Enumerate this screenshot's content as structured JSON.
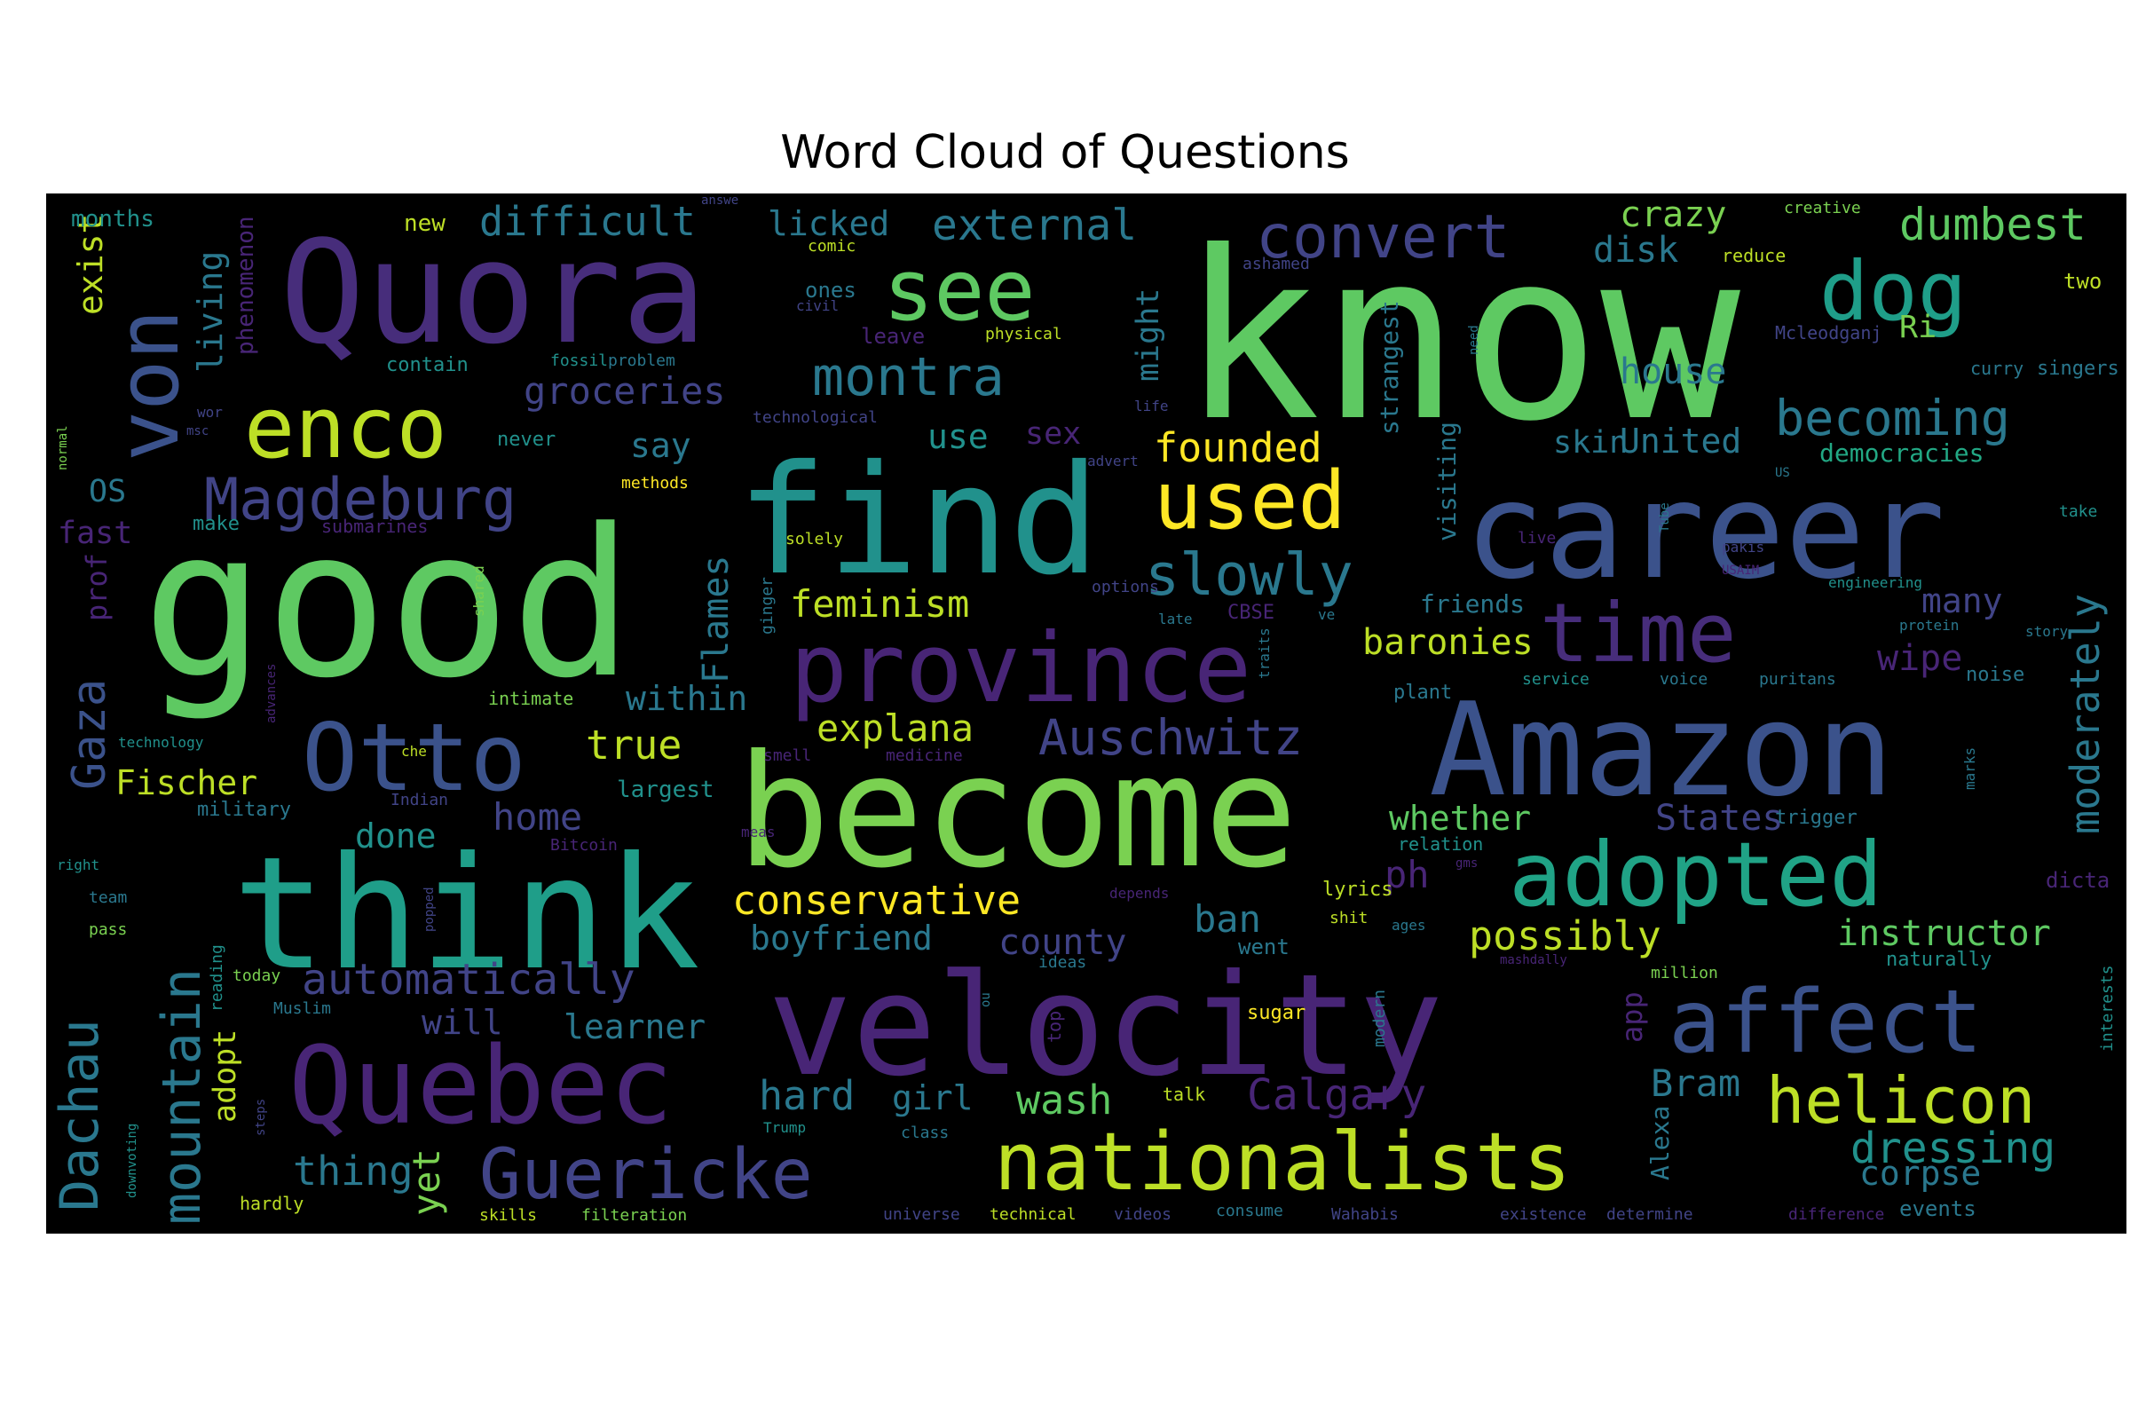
{
  "chart_data": {
    "type": "wordcloud",
    "title": "Word Cloud of Questions",
    "background": "#000000",
    "colormap": "viridis",
    "words": [
      {
        "text": "know",
        "size": 262,
        "color": "#5ec962"
      },
      {
        "text": "good",
        "size": 230,
        "color": "#5ec962"
      },
      {
        "text": "think",
        "size": 175,
        "color": "#1f9e89"
      },
      {
        "text": "become",
        "size": 175,
        "color": "#7ad151"
      },
      {
        "text": "find",
        "size": 170,
        "color": "#21918c"
      },
      {
        "text": "Quora",
        "size": 160,
        "color": "#472d7b"
      },
      {
        "text": "velocity",
        "size": 158,
        "color": "#482576"
      },
      {
        "text": "career",
        "size": 150,
        "color": "#3b528b"
      },
      {
        "text": "Amazon",
        "size": 145,
        "color": "#3b528b"
      },
      {
        "text": "Quebec",
        "size": 120,
        "color": "#482576"
      },
      {
        "text": "province",
        "size": 108,
        "color": "#482576"
      },
      {
        "text": "Otto",
        "size": 105,
        "color": "#3b528b"
      },
      {
        "text": "adopted",
        "size": 100,
        "color": "#20a386"
      },
      {
        "text": "affect",
        "size": 98,
        "color": "#3b528b"
      },
      {
        "text": "see",
        "size": 95,
        "color": "#5ec962"
      },
      {
        "text": "enco",
        "size": 95,
        "color": "#bddf26"
      },
      {
        "text": "dog",
        "size": 92,
        "color": "#1f9e89"
      },
      {
        "text": "used",
        "size": 90,
        "color": "#fde725"
      },
      {
        "text": "time",
        "size": 92,
        "color": "#472d7b"
      },
      {
        "text": "nationalists",
        "size": 90,
        "color": "#bddf26"
      },
      {
        "text": "von",
        "size": 95,
        "color": "#3b528b"
      },
      {
        "text": "Guericke",
        "size": 78,
        "color": "#414487"
      },
      {
        "text": "helicon",
        "size": 72,
        "color": "#bddf26"
      },
      {
        "text": "Magdeburg",
        "size": 65,
        "color": "#414487"
      },
      {
        "text": "convert",
        "size": 68,
        "color": "#414487"
      },
      {
        "text": "montra",
        "size": 60,
        "color": "#2a788e"
      },
      {
        "text": "slowly",
        "size": 65,
        "color": "#2a788e"
      },
      {
        "text": "mountain",
        "size": 60,
        "color": "#2a788e"
      },
      {
        "text": "Dachau",
        "size": 60,
        "color": "#2a788e"
      },
      {
        "text": "Gaza",
        "size": 52,
        "color": "#3b528b"
      },
      {
        "text": "becoming",
        "size": 55,
        "color": "#2a788e"
      },
      {
        "text": "dumbest",
        "size": 50,
        "color": "#5ec962"
      },
      {
        "text": "external",
        "size": 48,
        "color": "#2a788e"
      },
      {
        "text": "difficult",
        "size": 45,
        "color": "#2a788e"
      },
      {
        "text": "crazy",
        "size": 40,
        "color": "#7ad151"
      },
      {
        "text": "disk",
        "size": 40,
        "color": "#2a788e"
      },
      {
        "text": "groceries",
        "size": 42,
        "color": "#414487"
      },
      {
        "text": "living",
        "size": 38,
        "color": "#2a788e"
      },
      {
        "text": "might",
        "size": 35,
        "color": "#2a788e"
      },
      {
        "text": "licked",
        "size": 38,
        "color": "#2a788e"
      },
      {
        "text": "founded",
        "size": 45,
        "color": "#fde725"
      },
      {
        "text": "feminism",
        "size": 42,
        "color": "#bddf26"
      },
      {
        "text": "explana",
        "size": 42,
        "color": "#bddf26"
      },
      {
        "text": "true",
        "size": 45,
        "color": "#bddf26"
      },
      {
        "text": "Auschwitz",
        "size": 55,
        "color": "#414487"
      },
      {
        "text": "baronies",
        "size": 40,
        "color": "#bddf26"
      },
      {
        "text": "wipe",
        "size": 40,
        "color": "#482576"
      },
      {
        "text": "many",
        "size": 38,
        "color": "#414487"
      },
      {
        "text": "moderately",
        "size": 45,
        "color": "#2a788e"
      },
      {
        "text": "conservative",
        "size": 45,
        "color": "#fde725"
      },
      {
        "text": "boyfriend",
        "size": 38,
        "color": "#2a788e"
      },
      {
        "text": "county",
        "size": 40,
        "color": "#414487"
      },
      {
        "text": "ban",
        "size": 42,
        "color": "#2a788e"
      },
      {
        "text": "possibly",
        "size": 45,
        "color": "#bddf26"
      },
      {
        "text": "instructor",
        "size": 40,
        "color": "#5ec962"
      },
      {
        "text": "automatically",
        "size": 48,
        "color": "#414487"
      },
      {
        "text": "learner",
        "size": 38,
        "color": "#2a788e"
      },
      {
        "text": "hard",
        "size": 45,
        "color": "#2a788e"
      },
      {
        "text": "girl",
        "size": 38,
        "color": "#2a788e"
      },
      {
        "text": "wash",
        "size": 45,
        "color": "#5ec962"
      },
      {
        "text": "Calgary",
        "size": 48,
        "color": "#482576"
      },
      {
        "text": "Bram",
        "size": 42,
        "color": "#2a788e"
      },
      {
        "text": "dressing",
        "size": 48,
        "color": "#21918c"
      },
      {
        "text": "corpse",
        "size": 38,
        "color": "#2a788e"
      },
      {
        "text": "thing",
        "size": 45,
        "color": "#2a788e"
      },
      {
        "text": "yet",
        "size": 42,
        "color": "#7ad151"
      },
      {
        "text": "home",
        "size": 42,
        "color": "#414487"
      },
      {
        "text": "done",
        "size": 38,
        "color": "#21918c"
      },
      {
        "text": "Fischer",
        "size": 38,
        "color": "#bddf26"
      },
      {
        "text": "within",
        "size": 38,
        "color": "#2a788e"
      },
      {
        "text": "Flames",
        "size": 40,
        "color": "#2a788e"
      },
      {
        "text": "whether",
        "size": 38,
        "color": "#5ec962"
      },
      {
        "text": "States",
        "size": 40,
        "color": "#414487"
      },
      {
        "text": "ph",
        "size": 42,
        "color": "#482576"
      },
      {
        "text": "will",
        "size": 38,
        "color": "#414487"
      },
      {
        "text": "adopt",
        "size": 35,
        "color": "#bddf26"
      },
      {
        "text": "prof",
        "size": 32,
        "color": "#482576"
      },
      {
        "text": "exist",
        "size": 38,
        "color": "#bddf26"
      },
      {
        "text": "OS",
        "size": 35,
        "color": "#2a788e"
      },
      {
        "text": "fast",
        "size": 35,
        "color": "#482576"
      },
      {
        "text": "say",
        "size": 38,
        "color": "#2a788e"
      },
      {
        "text": "use",
        "size": 38,
        "color": "#21918c"
      },
      {
        "text": "sex",
        "size": 35,
        "color": "#482576"
      },
      {
        "text": "skin",
        "size": 35,
        "color": "#2a788e"
      },
      {
        "text": "United",
        "size": 38,
        "color": "#2a788e"
      },
      {
        "text": "house",
        "size": 40,
        "color": "#2a788e"
      },
      {
        "text": "Ri",
        "size": 35,
        "color": "#7ad151"
      },
      {
        "text": "democracies",
        "size": 28,
        "color": "#22a884"
      },
      {
        "text": "app",
        "size": 32,
        "color": "#482576"
      },
      {
        "text": "Alexa",
        "size": 28,
        "color": "#2a788e"
      },
      {
        "text": "friends",
        "size": 28,
        "color": "#2a788e"
      },
      {
        "text": "visiting",
        "size": 28,
        "color": "#2a788e"
      },
      {
        "text": "strangest",
        "size": 28,
        "color": "#2a788e"
      },
      {
        "text": "phenomenon",
        "size": 26,
        "color": "#482576"
      },
      {
        "text": "new",
        "size": 26,
        "color": "#bddf26"
      },
      {
        "text": "months",
        "size": 26,
        "color": "#21918c"
      },
      {
        "text": "ones",
        "size": 24,
        "color": "#2a788e"
      },
      {
        "text": "leave",
        "size": 24,
        "color": "#482576"
      },
      {
        "text": "contain",
        "size": 22,
        "color": "#21918c"
      },
      {
        "text": "never",
        "size": 22,
        "color": "#21918c"
      },
      {
        "text": "make",
        "size": 22,
        "color": "#21918c"
      },
      {
        "text": "intimate",
        "size": 20,
        "color": "#7ad151"
      },
      {
        "text": "largest",
        "size": 26,
        "color": "#21918c"
      },
      {
        "text": "military",
        "size": 22,
        "color": "#2a788e"
      },
      {
        "text": "today",
        "size": 18,
        "color": "#7ad151"
      },
      {
        "text": "hardly",
        "size": 20,
        "color": "#bddf26"
      },
      {
        "text": "skills",
        "size": 18,
        "color": "#bddf26"
      },
      {
        "text": "filteration",
        "size": 18,
        "color": "#7ad151"
      },
      {
        "text": "reading",
        "size": 18,
        "color": "#21918c"
      },
      {
        "text": "talk",
        "size": 20,
        "color": "#bddf26"
      },
      {
        "text": "sugar",
        "size": 22,
        "color": "#fde725"
      },
      {
        "text": "lyrics",
        "size": 22,
        "color": "#bddf26"
      },
      {
        "text": "went",
        "size": 24,
        "color": "#2a788e"
      },
      {
        "text": "plant",
        "size": 22,
        "color": "#2a788e"
      },
      {
        "text": "trigger",
        "size": 22,
        "color": "#2a788e"
      },
      {
        "text": "events",
        "size": 24,
        "color": "#2a788e"
      },
      {
        "text": "naturally",
        "size": 22,
        "color": "#21918c"
      },
      {
        "text": "noise",
        "size": 22,
        "color": "#2a788e"
      },
      {
        "text": "two",
        "size": 24,
        "color": "#bddf26"
      },
      {
        "text": "reduce",
        "size": 20,
        "color": "#bddf26"
      },
      {
        "text": "Mcleodganj",
        "size": 20,
        "color": "#414487"
      },
      {
        "text": "curry",
        "size": 20,
        "color": "#2a788e"
      },
      {
        "text": "singers",
        "size": 22,
        "color": "#2a788e"
      },
      {
        "text": "take",
        "size": 18,
        "color": "#21918c"
      },
      {
        "text": "interests",
        "size": 18,
        "color": "#21918c"
      },
      {
        "text": "million",
        "size": 18,
        "color": "#7ad151"
      },
      {
        "text": "dicta",
        "size": 24,
        "color": "#482576"
      },
      {
        "text": "creative",
        "size": 18,
        "color": "#7ad151"
      },
      {
        "text": "difference",
        "size": 18,
        "color": "#482576"
      },
      {
        "text": "determine",
        "size": 18,
        "color": "#414487"
      },
      {
        "text": "existence",
        "size": 18,
        "color": "#414487"
      },
      {
        "text": "Wahabis",
        "size": 18,
        "color": "#414487"
      },
      {
        "text": "consume",
        "size": 18,
        "color": "#2a788e"
      },
      {
        "text": "videos",
        "size": 18,
        "color": "#414487"
      },
      {
        "text": "technical",
        "size": 18,
        "color": "#bddf26"
      },
      {
        "text": "universe",
        "size": 18,
        "color": "#414487"
      },
      {
        "text": "class",
        "size": 18,
        "color": "#2a788e"
      },
      {
        "text": "Trump",
        "size": 16,
        "color": "#21918c"
      },
      {
        "text": "ideas",
        "size": 18,
        "color": "#2a788e"
      },
      {
        "text": "top",
        "size": 20,
        "color": "#482576"
      },
      {
        "text": "modern",
        "size": 18,
        "color": "#2a788e"
      },
      {
        "text": "Muslim",
        "size": 18,
        "color": "#2a788e"
      },
      {
        "text": "pass",
        "size": 18,
        "color": "#7ad151"
      },
      {
        "text": "team",
        "size": 18,
        "color": "#2a788e"
      },
      {
        "text": "right",
        "size": 16,
        "color": "#21918c"
      },
      {
        "text": "Indian",
        "size": 18,
        "color": "#414487"
      },
      {
        "text": "technology",
        "size": 16,
        "color": "#21918c"
      },
      {
        "text": "normal",
        "size": 14,
        "color": "#7ad151"
      },
      {
        "text": "msc",
        "size": 14,
        "color": "#414487"
      },
      {
        "text": "wor",
        "size": 16,
        "color": "#414487"
      },
      {
        "text": "comic",
        "size": 18,
        "color": "#bddf26"
      },
      {
        "text": "civil",
        "size": 16,
        "color": "#414487"
      },
      {
        "text": "physical",
        "size": 18,
        "color": "#bddf26"
      },
      {
        "text": "ashamed",
        "size": 18,
        "color": "#414487"
      },
      {
        "text": "need",
        "size": 14,
        "color": "#2a788e"
      },
      {
        "text": "fossil",
        "size": 18,
        "color": "#21918c"
      },
      {
        "text": "problem",
        "size": 18,
        "color": "#2a788e"
      },
      {
        "text": "technological",
        "size": 18,
        "color": "#414487"
      },
      {
        "text": "life",
        "size": 16,
        "color": "#414487"
      },
      {
        "text": "methods",
        "size": 18,
        "color": "#fde725"
      },
      {
        "text": "advert",
        "size": 16,
        "color": "#414487"
      },
      {
        "text": "submarines",
        "size": 20,
        "color": "#482576"
      },
      {
        "text": "solely",
        "size": 18,
        "color": "#bddf26"
      },
      {
        "text": "options",
        "size": 18,
        "color": "#414487"
      },
      {
        "text": "late",
        "size": 16,
        "color": "#2a788e"
      },
      {
        "text": "CBSE",
        "size": 22,
        "color": "#482576"
      },
      {
        "text": "ve",
        "size": 16,
        "color": "#2a788e"
      },
      {
        "text": "traits",
        "size": 16,
        "color": "#2a788e"
      },
      {
        "text": "shared",
        "size": 16,
        "color": "#7ad151"
      },
      {
        "text": "ginger",
        "size": 18,
        "color": "#2a788e"
      },
      {
        "text": "che",
        "size": 16,
        "color": "#bddf26"
      },
      {
        "text": "smell",
        "size": 18,
        "color": "#482576"
      },
      {
        "text": "medicine",
        "size": 18,
        "color": "#482576"
      },
      {
        "text": "advances",
        "size": 14,
        "color": "#482576"
      },
      {
        "text": "meas",
        "size": 16,
        "color": "#482576"
      },
      {
        "text": "Bitcoin",
        "size": 18,
        "color": "#482576"
      },
      {
        "text": "popped",
        "size": 14,
        "color": "#414487"
      },
      {
        "text": "depends",
        "size": 16,
        "color": "#482576"
      },
      {
        "text": "shit",
        "size": 18,
        "color": "#bddf26"
      },
      {
        "text": "ages",
        "size": 16,
        "color": "#2a788e"
      },
      {
        "text": "gms",
        "size": 14,
        "color": "#482576"
      },
      {
        "text": "relation",
        "size": 20,
        "color": "#21918c"
      },
      {
        "text": "mashdally",
        "size": 14,
        "color": "#482576"
      },
      {
        "text": "service",
        "size": 18,
        "color": "#21918c"
      },
      {
        "text": "voice",
        "size": 18,
        "color": "#2a788e"
      },
      {
        "text": "puritans",
        "size": 18,
        "color": "#2a788e"
      },
      {
        "text": "engineering",
        "size": 16,
        "color": "#21918c"
      },
      {
        "text": "protein",
        "size": 16,
        "color": "#2a788e"
      },
      {
        "text": "story",
        "size": 16,
        "color": "#2a788e"
      },
      {
        "text": "marks",
        "size": 16,
        "color": "#2a788e"
      },
      {
        "text": "live",
        "size": 18,
        "color": "#482576"
      },
      {
        "text": "pakis",
        "size": 16,
        "color": "#414487"
      },
      {
        "text": "USAIM",
        "size": 14,
        "color": "#482576"
      },
      {
        "text": "Tube",
        "size": 14,
        "color": "#2a788e"
      },
      {
        "text": "US",
        "size": 14,
        "color": "#2a788e"
      },
      {
        "text": "answe",
        "size": 14,
        "color": "#414487"
      },
      {
        "text": "steps",
        "size": 14,
        "color": "#414487"
      },
      {
        "text": "downvoting",
        "size": 14,
        "color": "#21918c"
      },
      {
        "text": "ou",
        "size": 14,
        "color": "#2a788e"
      }
    ]
  }
}
